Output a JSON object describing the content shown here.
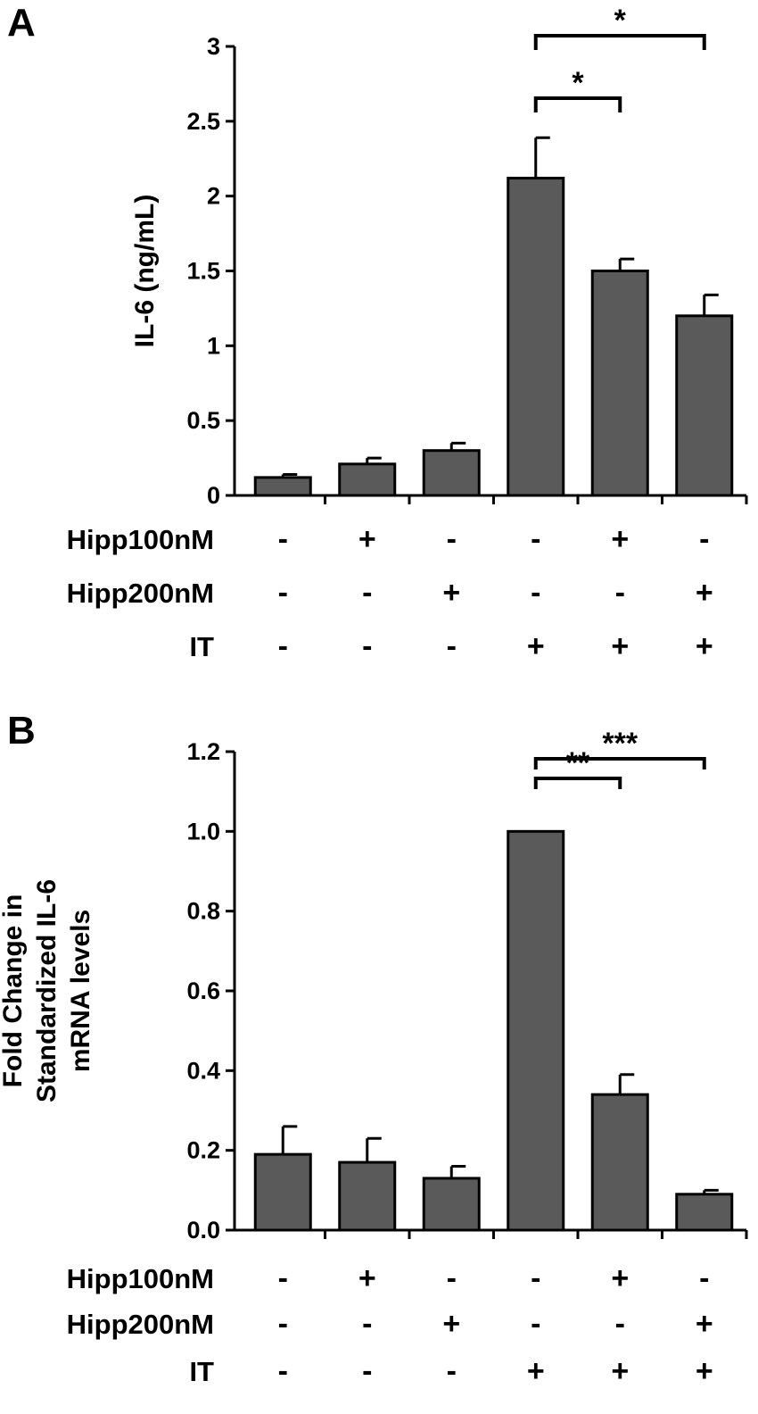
{
  "colors": {
    "bar": "#5a5a5a",
    "ink": "#000000",
    "background": "#ffffff"
  },
  "treatment_rows": [
    "Hipp100nM",
    "Hipp200nM",
    "IT"
  ],
  "chart_data": [
    {
      "panel": "A",
      "type": "bar",
      "ylabel": "IL-6 (ng/mL)",
      "ylim": [
        0,
        3
      ],
      "yticks": [
        "0",
        "0.5",
        "1",
        "1.5",
        "2",
        "2.5",
        "3"
      ],
      "values": [
        0.12,
        0.21,
        0.3,
        2.12,
        1.5,
        1.2
      ],
      "errors": [
        0.02,
        0.04,
        0.05,
        0.27,
        0.08,
        0.14
      ],
      "treatments": {
        "Hipp100nM": [
          "-",
          "+",
          "-",
          "-",
          "+",
          "-"
        ],
        "Hipp200nM": [
          "-",
          "-",
          "+",
          "-",
          "-",
          "+"
        ],
        "IT": [
          "-",
          "-",
          "-",
          "+",
          "+",
          "+"
        ]
      },
      "significance": [
        {
          "from": 3,
          "to": 4,
          "label": "*"
        },
        {
          "from": 3,
          "to": 5,
          "label": "*"
        }
      ],
      "grid": false
    },
    {
      "panel": "B",
      "type": "bar",
      "ylabel": [
        "Fold Change in",
        "Standardized IL-6",
        "mRNA levels"
      ],
      "ylim": [
        0,
        1.2
      ],
      "yticks": [
        "0.0",
        "0.2",
        "0.4",
        "0.6",
        "0.8",
        "1.0",
        "1.2"
      ],
      "values": [
        0.19,
        0.17,
        0.13,
        1.0,
        0.34,
        0.09
      ],
      "errors": [
        0.07,
        0.06,
        0.03,
        0.0,
        0.05,
        0.01
      ],
      "treatments": {
        "Hipp100nM": [
          "-",
          "+",
          "-",
          "-",
          "+",
          "-"
        ],
        "Hipp200nM": [
          "-",
          "-",
          "+",
          "-",
          "-",
          "+"
        ],
        "IT": [
          "-",
          "-",
          "-",
          "+",
          "+",
          "+"
        ]
      },
      "significance": [
        {
          "from": 3,
          "to": 4,
          "label": "**"
        },
        {
          "from": 3,
          "to": 5,
          "label": "***"
        }
      ],
      "grid": false
    }
  ]
}
